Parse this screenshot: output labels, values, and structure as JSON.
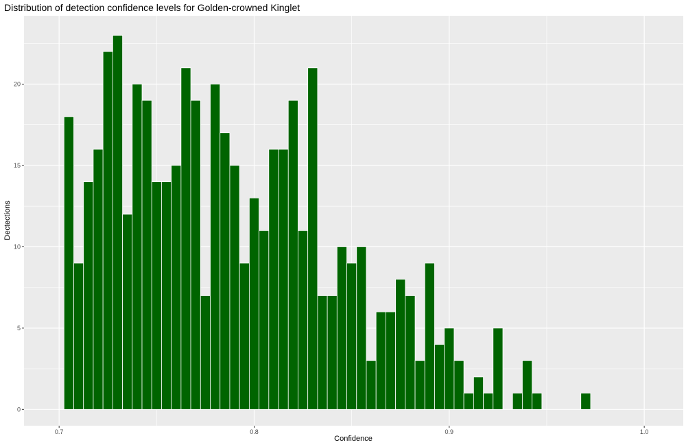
{
  "chart_data": {
    "type": "bar",
    "title": "Distribution of detection confidence levels for Golden-crowned Kinglet",
    "xlabel": "Confidence",
    "ylabel": "Dectections",
    "xlim": [
      0.682,
      1.02
    ],
    "ylim": [
      -1.0,
      24.2
    ],
    "x_ticks": [
      0.7,
      0.8,
      0.9,
      1.0
    ],
    "x_tick_labels": [
      "0.7",
      "0.8",
      "0.9",
      "1.0"
    ],
    "y_ticks": [
      0,
      5,
      10,
      15,
      20
    ],
    "y_tick_labels": [
      "0",
      "5",
      "10",
      "15",
      "20"
    ],
    "bin_start": 0.7025,
    "bin_width": 0.005,
    "values": [
      18,
      9,
      14,
      16,
      22,
      23,
      12,
      20,
      19,
      14,
      14,
      15,
      21,
      19,
      7,
      20,
      17,
      15,
      9,
      13,
      11,
      16,
      16,
      19,
      11,
      21,
      7,
      7,
      10,
      9,
      10,
      3,
      6,
      6,
      8,
      7,
      3,
      9,
      4,
      5,
      3,
      1,
      2,
      1,
      5,
      0,
      1,
      3,
      1,
      0,
      0,
      0,
      0,
      1
    ],
    "bar_color": "#006400",
    "bar_outline": "#ffffff",
    "panel_background": "#ebebeb",
    "grid": true,
    "grid_color": "#ffffff",
    "legend": "none"
  }
}
